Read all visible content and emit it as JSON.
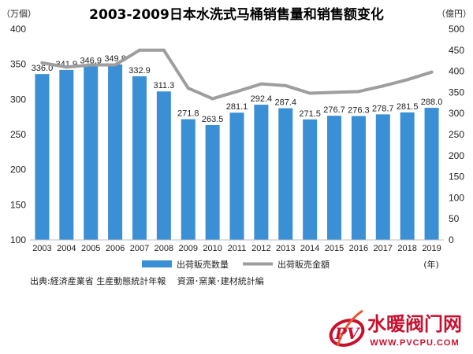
{
  "chart_data": {
    "type": "bar+line",
    "title": "2003-2009日本水洗式马桶销售量和销售额变化",
    "left_axis_unit": "（万個）",
    "right_axis_unit": "（億円）",
    "x_unit": "(年)",
    "categories": [
      "2003",
      "2004",
      "2005",
      "2006",
      "2007",
      "2008",
      "2009",
      "2010",
      "2011",
      "2012",
      "2013",
      "2014",
      "2015",
      "2016",
      "2017",
      "2018",
      "2019"
    ],
    "left_ylim": [
      100,
      400
    ],
    "left_ticks": [
      100,
      150,
      200,
      250,
      300,
      350,
      400
    ],
    "right_ylim": [
      0,
      500
    ],
    "right_ticks": [
      0,
      50,
      100,
      150,
      200,
      250,
      300,
      350,
      400,
      450,
      500
    ],
    "series": [
      {
        "name": "出荷販売数量",
        "kind": "bar",
        "axis": "left",
        "color": "#3b8fd4",
        "values": [
          336.0,
          341.9,
          346.9,
          349.8,
          332.9,
          311.3,
          271.8,
          263.5,
          281.1,
          292.4,
          287.4,
          271.5,
          276.7,
          276.3,
          278.7,
          281.5,
          288.0
        ],
        "labels": [
          "336.0",
          "341.9",
          "346.9",
          "349.8",
          "332.9",
          "311.3",
          "271.8",
          "263.5",
          "281.1",
          "292.4",
          "287.4",
          "271.5",
          "276.7",
          "276.3",
          "278.7",
          "281.5",
          "288.0"
        ]
      },
      {
        "name": "出荷販売金額",
        "kind": "line",
        "axis": "right",
        "color": "#9e9e9e",
        "values": [
          420,
          410,
          415,
          415,
          450,
          450,
          360,
          335,
          352,
          370,
          366,
          348,
          350,
          352,
          365,
          380,
          398
        ]
      }
    ],
    "source": "出典:経済産業省 生産動態統計年報　 資源･窯業･建材統計編"
  },
  "watermark": {
    "logo_letter": "PV",
    "name": "水暖阀门网",
    "url": "WWW.PVCPU.COM",
    "color": "#c8102e"
  }
}
